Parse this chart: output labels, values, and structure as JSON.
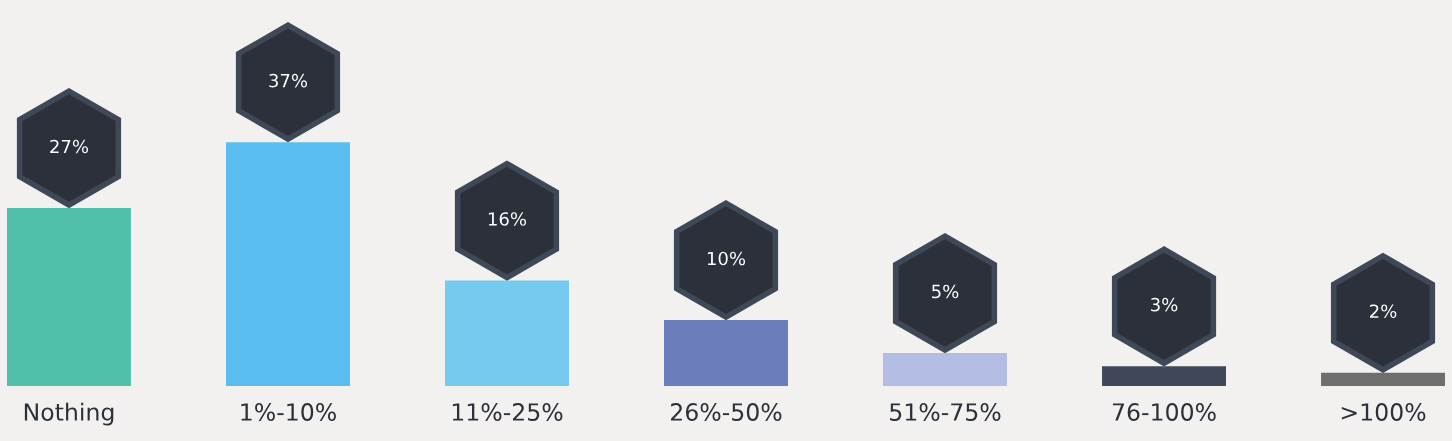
{
  "chart_data": {
    "type": "bar",
    "categories": [
      "Nothing",
      "1%-10%",
      "11%-25%",
      "26%-50%",
      "51%-75%",
      "76-100%",
      ">100%"
    ],
    "values": [
      27,
      37,
      16,
      10,
      5,
      3,
      2
    ],
    "colors": [
      "#52bfab",
      "#5bbcf0",
      "#75caef",
      "#6b7dbd",
      "#b3bde3",
      "#3f4857",
      "#6e6e6e"
    ],
    "value_labels": [
      "27%",
      "37%",
      "16%",
      "10%",
      "5%",
      "3%",
      "2%"
    ],
    "tick_labels": "x",
    "grid": false,
    "legend": false
  }
}
